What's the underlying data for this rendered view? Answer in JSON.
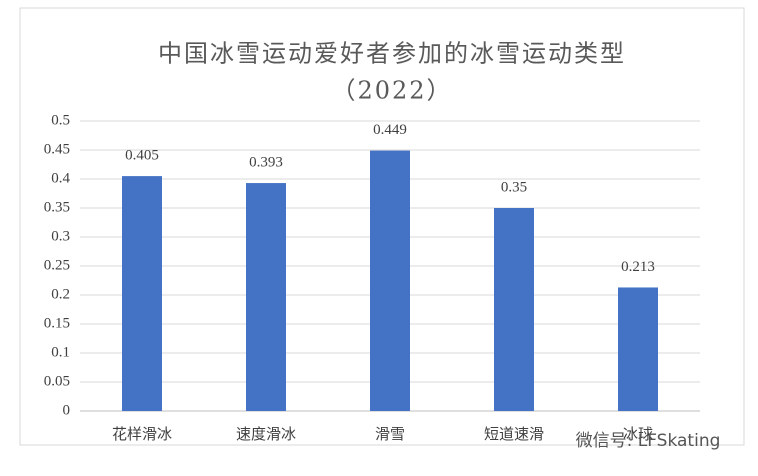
{
  "chart_data": {
    "type": "bar",
    "title": "中国冰雪运动爱好者参加的冰雪运动类型",
    "subtitle": "（2022）",
    "categories": [
      "花样滑冰",
      "速度滑冰",
      "滑雪",
      "短道速滑",
      "冰球"
    ],
    "values": [
      0.405,
      0.393,
      0.449,
      0.35,
      0.213
    ],
    "color": "#4472c4",
    "ylim": [
      0,
      0.5
    ],
    "yticks": [
      0,
      0.05,
      0.1,
      0.15,
      0.2,
      0.25,
      0.3,
      0.35,
      0.4,
      0.45,
      0.5
    ],
    "grid": true,
    "watermark": "微信号: LFSkating"
  }
}
